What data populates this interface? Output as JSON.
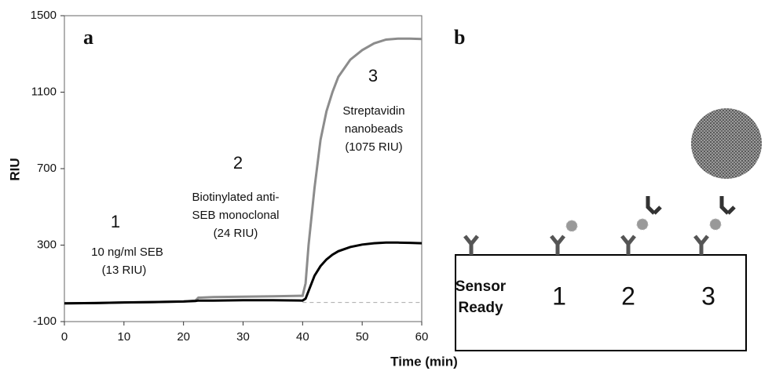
{
  "chart_data": {
    "type": "line",
    "panel_label": "a",
    "xlabel": "Time (min)",
    "ylabel": "RIU",
    "x": [
      0,
      5,
      10,
      15,
      20,
      22,
      22.5,
      25,
      30,
      35,
      40,
      40.5,
      41,
      42,
      43,
      44,
      45,
      46,
      48,
      50,
      52,
      54,
      56,
      58,
      60
    ],
    "series": [
      {
        "color": "#8c8c8c",
        "values": [
          -5,
          -3,
          0,
          2,
          5,
          10,
          25,
          28,
          30,
          32,
          35,
          100,
          300,
          600,
          850,
          1000,
          1100,
          1180,
          1270,
          1320,
          1355,
          1375,
          1380,
          1380,
          1378
        ]
      },
      {
        "color": "#000000",
        "values": [
          -5,
          -3,
          0,
          2,
          5,
          8,
          10,
          10,
          12,
          12,
          10,
          20,
          60,
          140,
          190,
          225,
          250,
          268,
          290,
          303,
          310,
          313,
          313,
          312,
          310
        ]
      }
    ],
    "baseline": {
      "value": 0,
      "from": 40,
      "to": 60
    },
    "xlim": [
      0,
      60
    ],
    "xticks": [
      0,
      10,
      20,
      30,
      40,
      50,
      60
    ],
    "ylim": [
      -100,
      1500
    ],
    "yticks": [
      -100,
      300,
      700,
      1100,
      1500
    ],
    "annotations": [
      "1",
      "10 ng/ml SEB",
      "(13 RIU)",
      "2",
      "Biotinylated anti-",
      "SEB monoclonal",
      "(24 RIU)",
      "3",
      "Streptavidin",
      "nanobeads",
      "(1075 RIU)"
    ]
  },
  "diagram": {
    "panel_label": "b",
    "box_label": [
      "Sensor",
      "Ready"
    ],
    "steps": [
      "1",
      "2",
      "3"
    ]
  }
}
